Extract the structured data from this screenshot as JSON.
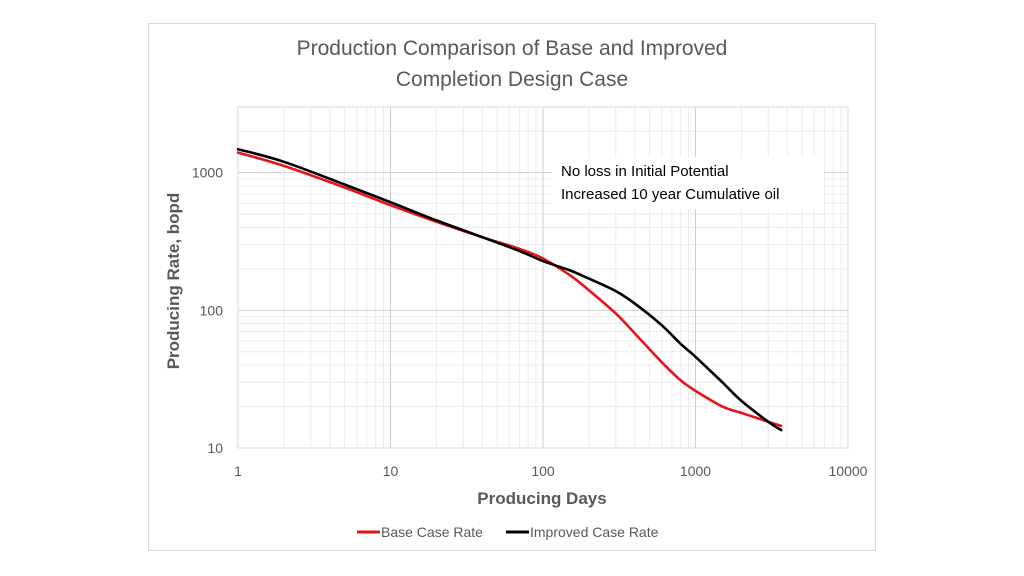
{
  "chart_data": {
    "type": "line",
    "title_lines": [
      "Production Comparison of Base and Improved",
      "Completion Design Case"
    ],
    "xlabel": "Producing Days",
    "ylabel": "Producing Rate, bopd",
    "x_scale": "log",
    "y_scale": "log",
    "xlim": [
      1,
      10000
    ],
    "ylim": [
      10,
      3000
    ],
    "x_ticks": [
      1,
      10,
      100,
      1000,
      10000
    ],
    "x_tick_labels": [
      "1",
      "10",
      "100",
      "1000",
      "10000"
    ],
    "y_ticks": [
      10,
      100,
      1000
    ],
    "y_tick_labels": [
      "10",
      "100",
      "1000"
    ],
    "grid": true,
    "legend_position": "bottom",
    "annotation_lines": [
      "No loss in Initial Potential",
      "Increased 10 year Cumulative oil"
    ],
    "series": [
      {
        "name": "Base Case Rate",
        "color": "#e8141b",
        "x": [
          1,
          2,
          5,
          10,
          20,
          40,
          70,
          100,
          150,
          200,
          300,
          400,
          600,
          800,
          1000,
          1500,
          2000,
          3000,
          3650
        ],
        "y": [
          1400,
          1120,
          780,
          580,
          440,
          340,
          280,
          238,
          180,
          140,
          95,
          68,
          42,
          31,
          26,
          20,
          18,
          15.5,
          14.5
        ]
      },
      {
        "name": "Improved Case Rate",
        "color": "#000000",
        "x": [
          1,
          2,
          5,
          10,
          20,
          40,
          70,
          100,
          150,
          200,
          300,
          400,
          600,
          800,
          1000,
          1500,
          2000,
          3000,
          3650
        ],
        "y": [
          1480,
          1200,
          820,
          610,
          450,
          340,
          270,
          228,
          195,
          170,
          138,
          112,
          78,
          57,
          46,
          30,
          22,
          15.5,
          13.5
        ]
      }
    ]
  }
}
